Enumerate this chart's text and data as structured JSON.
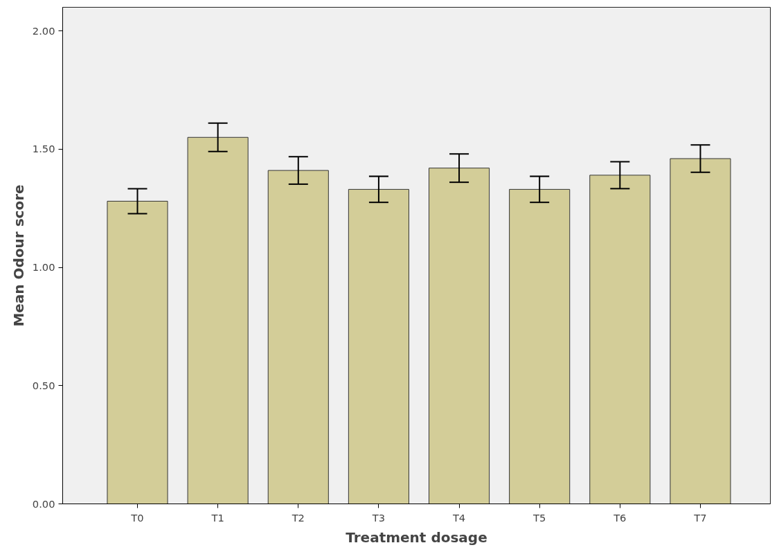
{
  "chart_data": {
    "type": "bar",
    "xlabel": "Treatment dosage",
    "ylabel": "Mean Odour score",
    "categories": [
      "T0",
      "T1",
      "T2",
      "T3",
      "T4",
      "T5",
      "T6",
      "T7"
    ],
    "values": [
      1.28,
      1.55,
      1.41,
      1.33,
      1.42,
      1.33,
      1.39,
      1.46
    ],
    "errors": [
      0.053,
      0.06,
      0.058,
      0.055,
      0.06,
      0.055,
      0.057,
      0.058
    ],
    "color": "#d3cd98",
    "ylim": [
      0,
      2.1
    ],
    "yticks": [
      {
        "value": 0,
        "label": "0.00"
      },
      {
        "value": 0.5,
        "label": "0.50"
      },
      {
        "value": 1,
        "label": "1.00"
      },
      {
        "value": 1.5,
        "label": "1.50"
      },
      {
        "value": 2,
        "label": "2.00"
      }
    ],
    "grid": false
  }
}
